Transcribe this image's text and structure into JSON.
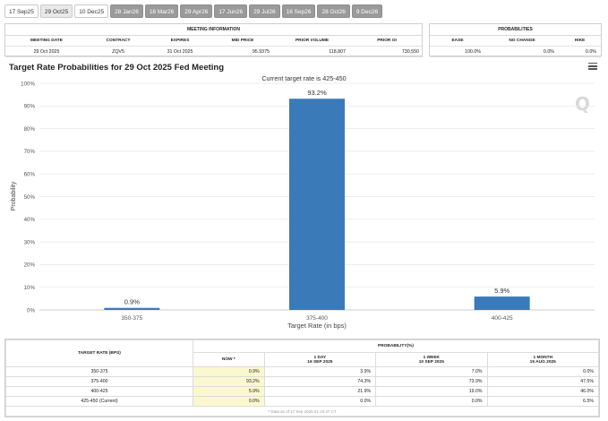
{
  "tabs": [
    {
      "label": "17 Sep25",
      "state": "normal"
    },
    {
      "label": "29 Oct25",
      "state": "active"
    },
    {
      "label": "10 Dec25",
      "state": "normal"
    },
    {
      "label": "28 Jan26",
      "state": "dim"
    },
    {
      "label": "18 Mar26",
      "state": "dim"
    },
    {
      "label": "29 Apr26",
      "state": "dim"
    },
    {
      "label": "17 Jun26",
      "state": "dim"
    },
    {
      "label": "29 Jul26",
      "state": "dim"
    },
    {
      "label": "16 Sep26",
      "state": "dim"
    },
    {
      "label": "28 Oct26",
      "state": "dim"
    },
    {
      "label": "9 Dec26",
      "state": "dim"
    }
  ],
  "meeting_info": {
    "title": "MEETING INFORMATION",
    "headers": [
      "MEETING DATE",
      "CONTRACT",
      "EXPIRES",
      "MID PRICE",
      "PRIOR VOLUME",
      "PRIOR OI"
    ],
    "values": [
      "29 Oct 2025",
      "ZQV5",
      "31 Oct 2025",
      "95.9375",
      "118,807",
      "730,550"
    ]
  },
  "probabilities": {
    "title": "PROBABILITIES",
    "headers": [
      "EASE",
      "NO CHANGE",
      "HIKE"
    ],
    "values": [
      "100.0%",
      "0.0%",
      "0.0%"
    ]
  },
  "chart_data": {
    "type": "bar",
    "title": "Target Rate Probabilities for 29 Oct 2025 Fed Meeting",
    "subtitle": "Current target rate is 425-450",
    "categories": [
      "350-375",
      "375-400",
      "400-425"
    ],
    "values": [
      0.9,
      93.2,
      5.9
    ],
    "data_labels": [
      "0.9%",
      "93.2%",
      "5.9%"
    ],
    "xlabel": "Target Rate (in bps)",
    "ylabel": "Probability",
    "ylim": [
      0,
      100
    ],
    "yticks": [
      "0%",
      "10%",
      "20%",
      "30%",
      "40%",
      "50%",
      "60%",
      "70%",
      "80%",
      "90%",
      "100%"
    ],
    "bar_color": "#3a7ab8",
    "grid": true
  },
  "logo_text": "Q",
  "prob_table": {
    "col_target": "TARGET RATE (BPS)",
    "group_label": "PROBABILITY(%)",
    "columns": [
      {
        "label": "NOW *",
        "date": ""
      },
      {
        "label": "1 DAY",
        "date": "16 SEP 2025"
      },
      {
        "label": "1 WEEK",
        "date": "10 SEP 2025"
      },
      {
        "label": "1 MONTH",
        "date": "15 AUG 2025"
      }
    ],
    "rows": [
      {
        "rate": "350-375",
        "values": [
          "0.9%",
          "3.9%",
          "7.0%",
          "0.0%"
        ]
      },
      {
        "rate": "375-400",
        "values": [
          "93.2%",
          "74.3%",
          "73.9%",
          "47.5%"
        ]
      },
      {
        "rate": "400-425",
        "values": [
          "5.9%",
          "21.9%",
          "19.0%",
          "46.0%"
        ]
      },
      {
        "rate": "425-450 (Current)",
        "values": [
          "0.0%",
          "0.0%",
          "0.0%",
          "6.5%"
        ]
      }
    ],
    "footnote": "* Data as of 17 Sep 2025 01:10:47 CT"
  }
}
